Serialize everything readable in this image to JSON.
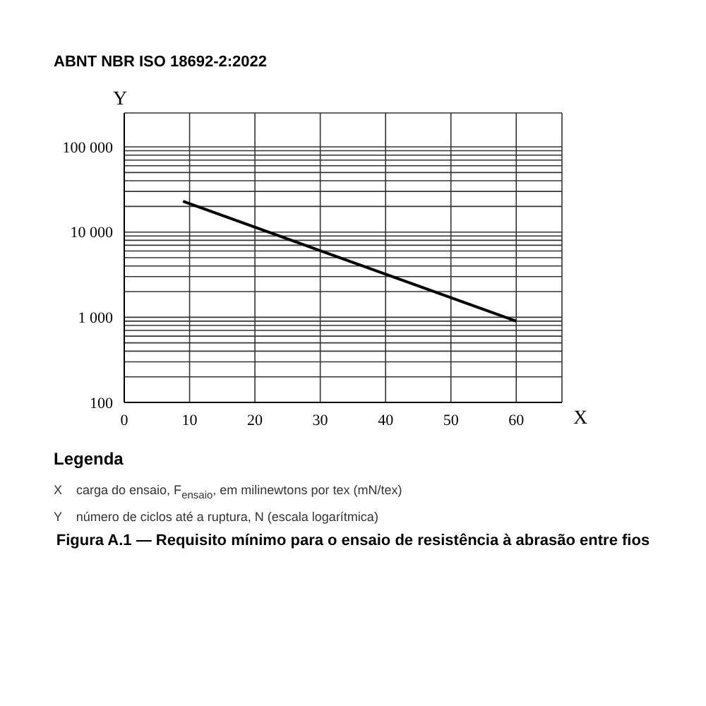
{
  "chart_data": {
    "type": "line",
    "title": "ABNT NBR ISO 18692-2:2022",
    "xlabel": "X",
    "ylabel": "Y",
    "x": [
      9,
      60
    ],
    "series": [
      {
        "color": "#000000",
        "values": [
          23000,
          900
        ]
      }
    ],
    "xlim": [
      0,
      67
    ],
    "xticks": [
      0,
      10,
      20,
      30,
      40,
      50,
      60
    ],
    "ylim": [
      100,
      250000
    ],
    "log": true,
    "yticks": [
      100,
      {
        "value": 200,
        "label": null
      },
      {
        "value": 300,
        "label": null
      },
      {
        "value": 400,
        "label": null
      },
      {
        "value": 500,
        "label": null
      },
      {
        "value": 600,
        "label": null
      },
      {
        "value": 700,
        "label": null
      },
      {
        "value": 800,
        "label": null
      },
      {
        "value": 900,
        "label": null
      },
      {
        "value": 1000,
        "label": "1 000"
      },
      {
        "value": 2000,
        "label": null
      },
      {
        "value": 3000,
        "label": null
      },
      {
        "value": 4000,
        "label": null
      },
      {
        "value": 5000,
        "label": null
      },
      {
        "value": 6000,
        "label": null
      },
      {
        "value": 7000,
        "label": null
      },
      {
        "value": 8000,
        "label": null
      },
      {
        "value": 9000,
        "label": null
      },
      {
        "value": 10000,
        "label": "10 000"
      },
      {
        "value": 20000,
        "label": null
      },
      {
        "value": 30000,
        "label": null
      },
      {
        "value": 40000,
        "label": null
      },
      {
        "value": 50000,
        "label": null
      },
      {
        "value": 60000,
        "label": null
      },
      {
        "value": 70000,
        "label": null
      },
      {
        "value": 80000,
        "label": null
      },
      {
        "value": 90000,
        "label": null
      },
      {
        "value": 100000,
        "label": "100 000"
      }
    ],
    "grid": true,
    "line_style": "solid",
    "annotations": [
      "Legenda",
      "X    carga do ensaio, F$_{ensaio}$, em milinewtons por tex (mN/tex)",
      "Y    número de ciclos até a ruptura, N (escala logarítmica)",
      "Figura A.1 — Requisito mínimo para o ensaio de resistência à abrasão entre fios"
    ]
  }
}
